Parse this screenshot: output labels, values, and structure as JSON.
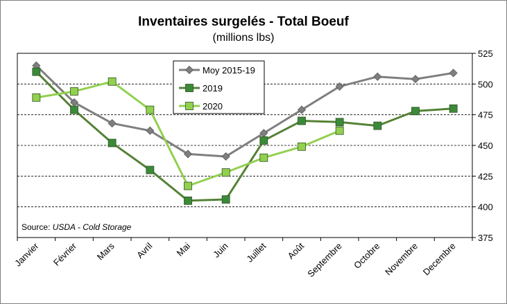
{
  "chart_data": {
    "type": "line",
    "title": "Inventaires surgelés - Total Boeuf",
    "subtitle": "(millions lbs)",
    "categories": [
      "Janvier",
      "Février",
      "Mars",
      "Avril",
      "Mai",
      "Juin",
      "Juillet",
      "Août",
      "Septembre",
      "Octobre",
      "Novembre",
      "Decembre"
    ],
    "ylim": [
      375,
      525
    ],
    "yticks": [
      375,
      400,
      425,
      450,
      475,
      500,
      525
    ],
    "y_axis_position": "right",
    "grid": "horizontal dashed",
    "legend_position": "top-center",
    "series": [
      {
        "name": "Moy 2015-19",
        "marker": "diamond",
        "color": "#7f7f7f",
        "marker_color": "#7f7f7f",
        "values": [
          515,
          485,
          468,
          462,
          443,
          441,
          460,
          479,
          498,
          506,
          504,
          509
        ]
      },
      {
        "name": "2019",
        "marker": "square",
        "color": "#548235",
        "marker_color": "#3a8a3a",
        "values": [
          510,
          479,
          452,
          430,
          405,
          406,
          454,
          470,
          469,
          466,
          478,
          480
        ]
      },
      {
        "name": "2020",
        "marker": "square",
        "color": "#92d050",
        "marker_color": "#92d050",
        "values": [
          489,
          494,
          502,
          479,
          417,
          428,
          440,
          449,
          462,
          null,
          null,
          null
        ]
      }
    ],
    "source_prefix": "Source: ",
    "source_text": "USDA - Cold Storage"
  }
}
